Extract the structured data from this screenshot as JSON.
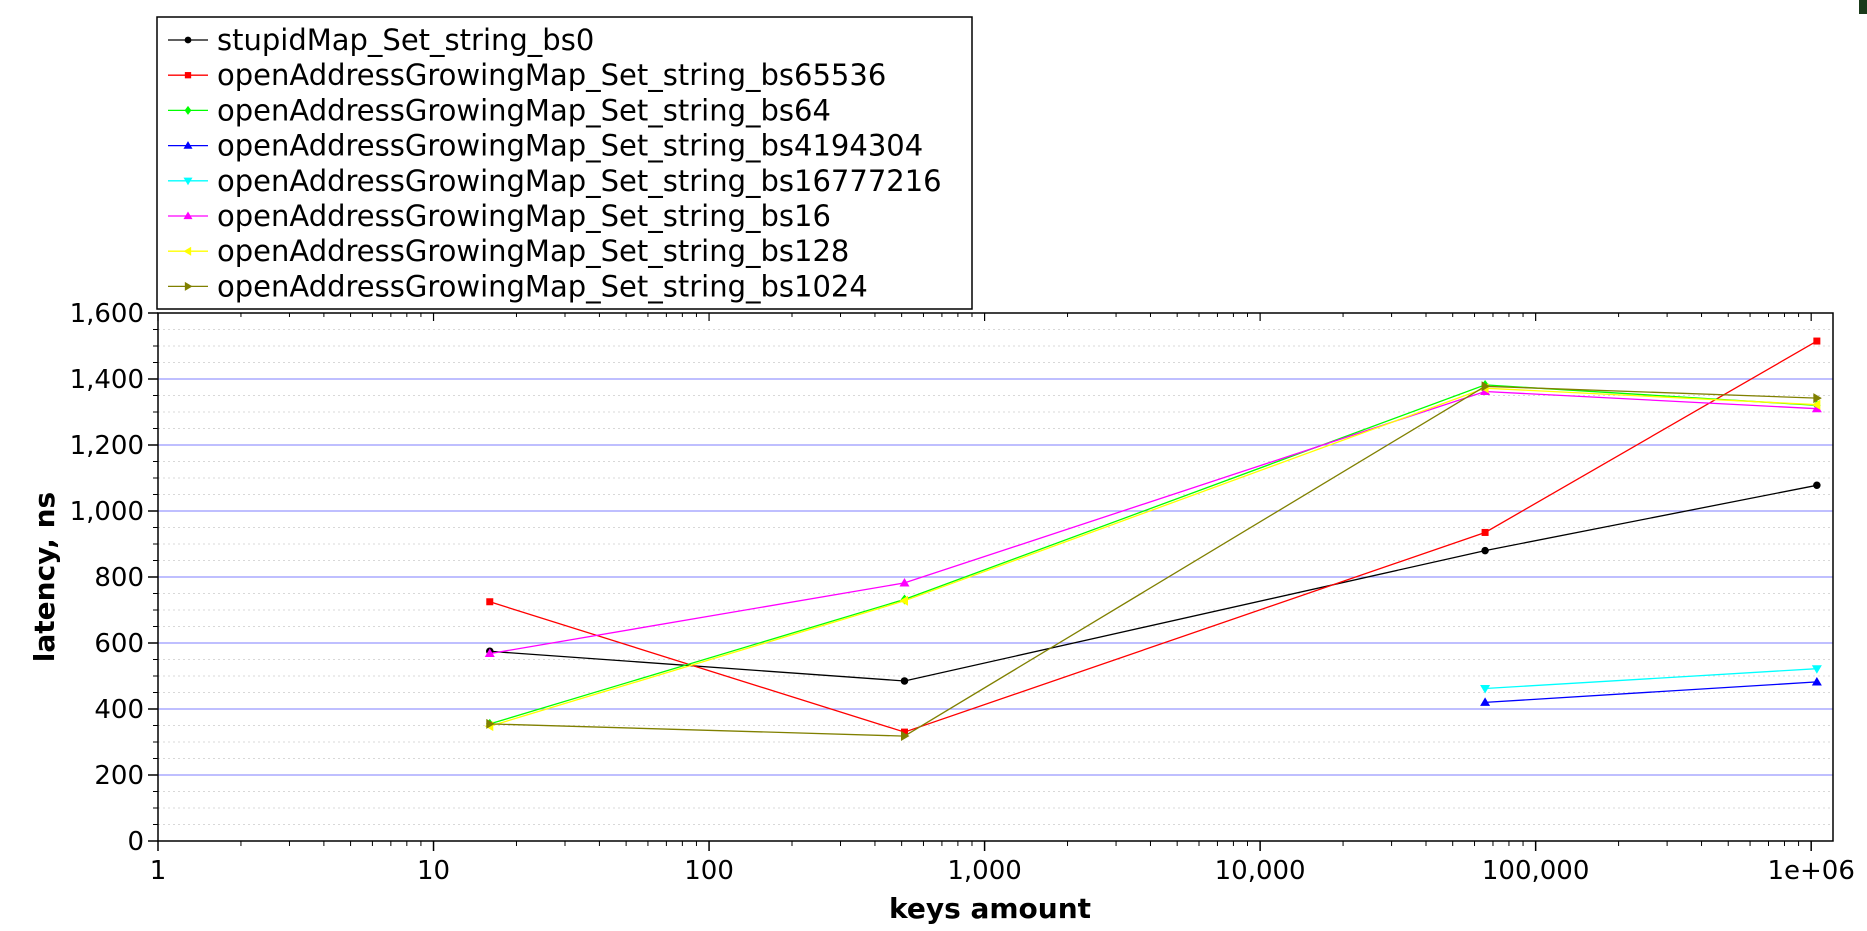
{
  "chart_data": {
    "type": "line",
    "xlabel": "keys amount",
    "ylabel": "latency, ns",
    "x_scale": "log",
    "xlim": [
      1,
      1200000
    ],
    "ylim": [
      0,
      1600
    ],
    "x_ticks": [
      {
        "value": 1,
        "label": "1"
      },
      {
        "value": 10,
        "label": "10"
      },
      {
        "value": 100,
        "label": "100"
      },
      {
        "value": 1000,
        "label": "1,000"
      },
      {
        "value": 10000,
        "label": "10,000"
      },
      {
        "value": 100000,
        "label": "100,000"
      },
      {
        "value": 1000000,
        "label": "1e+06"
      }
    ],
    "y_ticks": [
      {
        "value": 0,
        "label": "0"
      },
      {
        "value": 200,
        "label": "200"
      },
      {
        "value": 400,
        "label": "400"
      },
      {
        "value": 600,
        "label": "600"
      },
      {
        "value": 800,
        "label": "800"
      },
      {
        "value": 1000,
        "label": "1,000"
      },
      {
        "value": 1200,
        "label": "1,200"
      },
      {
        "value": 1400,
        "label": "1,400"
      },
      {
        "value": 1600,
        "label": "1,600"
      }
    ],
    "grid": true,
    "legend_position": "top-left",
    "series": [
      {
        "name": "stupidMap_Set_string_bs0",
        "color": "#000000",
        "marker": "circle",
        "x": [
          16,
          512,
          65536,
          1048576
        ],
        "y": [
          575,
          485,
          880,
          1078
        ]
      },
      {
        "name": "openAddressGrowingMap_Set_string_bs65536",
        "color": "#ff0000",
        "marker": "square",
        "x": [
          16,
          512,
          65536,
          1048576
        ],
        "y": [
          725,
          330,
          935,
          1515
        ]
      },
      {
        "name": "openAddressGrowingMap_Set_string_bs64",
        "color": "#00ff00",
        "marker": "diamond",
        "x": [
          16,
          512,
          65536,
          1048576
        ],
        "y": [
          355,
          732,
          1382,
          1320
        ]
      },
      {
        "name": "openAddressGrowingMap_Set_string_bs4194304",
        "color": "#0000ff",
        "marker": "triangle-up",
        "x": [
          65536,
          1048576
        ],
        "y": [
          420,
          482
        ]
      },
      {
        "name": "openAddressGrowingMap_Set_string_bs16777216",
        "color": "#00ffff",
        "marker": "triangle-down",
        "x": [
          65536,
          1048576
        ],
        "y": [
          462,
          522
        ]
      },
      {
        "name": "openAddressGrowingMap_Set_string_bs16",
        "color": "#ff00ff",
        "marker": "triangle-up",
        "x": [
          16,
          512,
          65536,
          1048576
        ],
        "y": [
          568,
          782,
          1362,
          1310
        ]
      },
      {
        "name": "openAddressGrowingMap_Set_string_bs128",
        "color": "#ffff00",
        "marker": "triangle-left",
        "x": [
          16,
          512,
          65536,
          1048576
        ],
        "y": [
          348,
          728,
          1372,
          1322
        ]
      },
      {
        "name": "openAddressGrowingMap_Set_string_bs1024",
        "color": "#808000",
        "marker": "triangle-right",
        "x": [
          16,
          512,
          65536,
          1048576
        ],
        "y": [
          355,
          318,
          1378,
          1342
        ]
      }
    ]
  }
}
